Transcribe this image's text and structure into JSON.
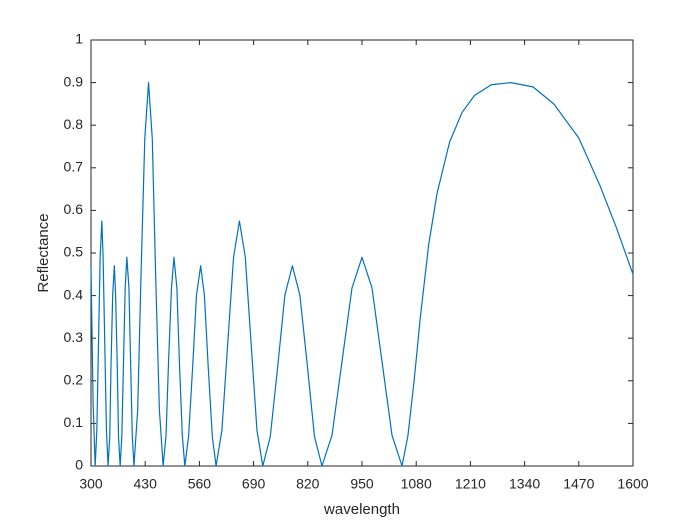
{
  "chart_data": {
    "type": "line",
    "xlabel": "wavelength",
    "ylabel": "Reflectance",
    "color": "#0072bd",
    "x": [
      300,
      305,
      310,
      314,
      318,
      322,
      326,
      329,
      333,
      337,
      341,
      345,
      348,
      352,
      356,
      359,
      363,
      366,
      370,
      374,
      378,
      382,
      386,
      391,
      395,
      399,
      403,
      412,
      420,
      429,
      438,
      447,
      455,
      464,
      473,
      480,
      486,
      493,
      499,
      506,
      512,
      519,
      525,
      534,
      544,
      553,
      563,
      572,
      581,
      591,
      600,
      614,
      628,
      642,
      656,
      670,
      684,
      698,
      712,
      730,
      748,
      765,
      783,
      801,
      819,
      836,
      854,
      878,
      902,
      926,
      950,
      974,
      998,
      1022,
      1046,
      1060,
      1075,
      1090,
      1110,
      1130,
      1160,
      1190,
      1220,
      1260,
      1307,
      1360,
      1410,
      1470,
      1520,
      1560,
      1600
    ],
    "values": [
      0.47,
      0.15,
      0,
      0.084,
      0.288,
      0.491,
      0.575,
      0.491,
      0.288,
      0.084,
      0,
      0.069,
      0.235,
      0.401,
      0.47,
      0.401,
      0.235,
      0.069,
      0,
      0.072,
      0.245,
      0.418,
      0.49,
      0.418,
      0.245,
      0.072,
      0,
      0.132,
      0.45,
      0.768,
      0.9,
      0.768,
      0.45,
      0.132,
      0,
      0.072,
      0.245,
      0.418,
      0.49,
      0.418,
      0.245,
      0.072,
      0,
      0.069,
      0.235,
      0.401,
      0.47,
      0.401,
      0.235,
      0.069,
      0,
      0.084,
      0.288,
      0.491,
      0.575,
      0.491,
      0.288,
      0.084,
      0,
      0.069,
      0.235,
      0.401,
      0.47,
      0.401,
      0.235,
      0.069,
      0,
      0.072,
      0.245,
      0.418,
      0.49,
      0.418,
      0.245,
      0.072,
      0,
      0.07,
      0.2,
      0.35,
      0.52,
      0.64,
      0.76,
      0.83,
      0.87,
      0.895,
      0.9,
      0.89,
      0.85,
      0.77,
      0.66,
      0.56,
      0.45
    ],
    "xlim": [
      300,
      1600
    ],
    "xticks": [
      300,
      430,
      560,
      690,
      820,
      950,
      1080,
      1210,
      1340,
      1470,
      1600
    ],
    "ylim": [
      0,
      1
    ],
    "yticks": [
      0,
      0.1,
      0.2,
      0.3,
      0.4,
      0.5,
      0.6,
      0.7,
      0.8,
      0.9,
      1
    ],
    "grid": false
  }
}
